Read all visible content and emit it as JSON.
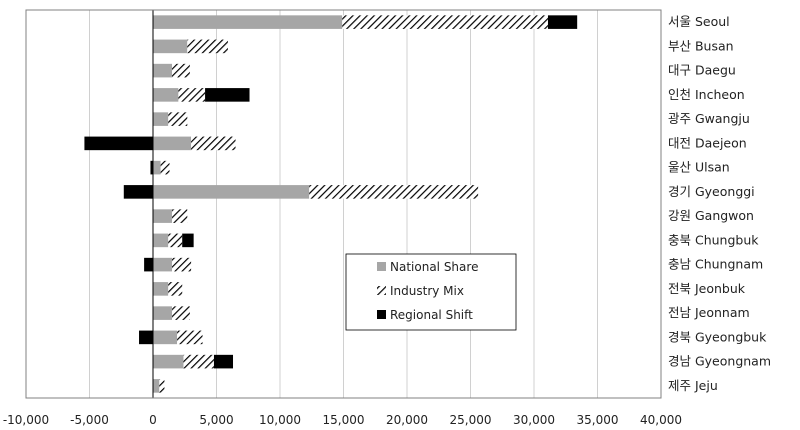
{
  "chart_data": {
    "type": "bar",
    "orientation": "horizontal",
    "stacked": true,
    "categories": [
      "서울 Seoul",
      "부산 Busan",
      "대구 Daegu",
      "인천 Incheon",
      "광주 Gwangju",
      "대전 Daejeon",
      "울산 Ulsan",
      "경기 Gyeonggi",
      "강원 Gangwon",
      "충북 Chungbuk",
      "충남 Chungnam",
      "전북 Jeonbuk",
      "전남 Jeonnam",
      "경북 Gyeongbuk",
      "경남 Gyeongnam",
      "제주 Jeju"
    ],
    "series": [
      {
        "name": "National Share",
        "values": [
          14900,
          2700,
          1500,
          2000,
          1200,
          3000,
          600,
          12300,
          1500,
          1200,
          1500,
          1200,
          1500,
          1900,
          2400,
          500
        ]
      },
      {
        "name": "Industry Mix",
        "values": [
          16200,
          3200,
          1400,
          2100,
          1500,
          3500,
          700,
          13300,
          1200,
          1100,
          1500,
          1100,
          1400,
          2000,
          2400,
          400
        ]
      },
      {
        "name": "Regional Shift",
        "values": [
          2300,
          0,
          0,
          3500,
          0,
          -5400,
          -200,
          -2300,
          0,
          900,
          -700,
          0,
          0,
          -1100,
          1500,
          0
        ]
      }
    ],
    "xlim": [
      -10000,
      40000
    ],
    "xticks": [
      -10000,
      -5000,
      0,
      5000,
      10000,
      15000,
      20000,
      25000,
      30000,
      35000,
      40000
    ],
    "xtick_labels": [
      "-10,000",
      "-5,000",
      "0",
      "5,000",
      "10,000",
      "15,000",
      "20,000",
      "25,000",
      "30,000",
      "35,000",
      "40,000"
    ],
    "grid": true,
    "legend_position": "center-right",
    "colors": {
      "National Share": "#a6a6a6",
      "Industry Mix": "hatch",
      "Regional Shift": "#000000",
      "grid": "#d0d0d0",
      "axis": "#808080"
    },
    "title": "",
    "xlabel": "",
    "ylabel": ""
  }
}
